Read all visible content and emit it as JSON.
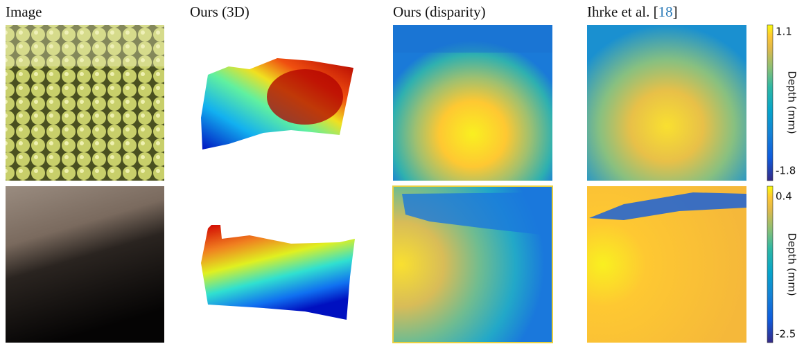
{
  "columns": [
    {
      "title": "Image"
    },
    {
      "title": "Ours (3D)"
    },
    {
      "title": "Ours (disparity)"
    },
    {
      "prefix": "Ihrke et al. [",
      "citation": "18",
      "suffix": "]"
    }
  ],
  "colorbars": [
    {
      "max": "1.1",
      "min": "-1.8",
      "label": "Depth (mm)"
    },
    {
      "max": "0.4",
      "min": "-2.5",
      "label": "Depth (mm)"
    }
  ]
}
